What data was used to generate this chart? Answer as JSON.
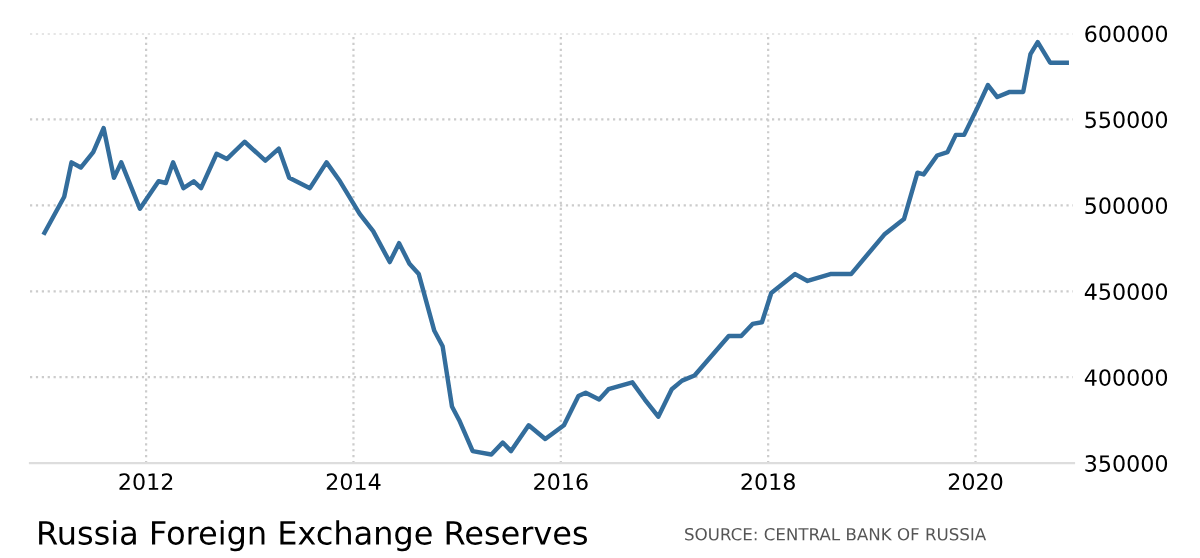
{
  "chart_data": {
    "type": "line",
    "title": "Russia Foreign Exchange Reserves",
    "annotations": [
      "SOURCE: CENTRAL BANK OF RUSSIA"
    ],
    "xlim": [
      2010.88,
      2020.95
    ],
    "xticks": [
      2012,
      2014,
      2016,
      2018,
      2020
    ],
    "ylim": [
      350000,
      600000
    ],
    "yticks": [
      350000,
      400000,
      450000,
      500000,
      550000,
      600000
    ],
    "grid": true,
    "marker": "none",
    "line_style": "solid",
    "series": [
      {
        "color": "#336d9c",
        "x": [
          2011.02,
          2011.21,
          2011.28,
          2011.37,
          2011.49,
          2011.59,
          2011.69,
          2011.76,
          2011.94,
          2012.12,
          2012.19,
          2012.26,
          2012.36,
          2012.46,
          2012.53,
          2012.68,
          2012.78,
          2012.95,
          2013.15,
          2013.28,
          2013.38,
          2013.58,
          2013.74,
          2013.87,
          2014.06,
          2014.19,
          2014.35,
          2014.44,
          2014.54,
          2014.63,
          2014.78,
          2014.86,
          2014.95,
          2015.02,
          2015.15,
          2015.33,
          2015.44,
          2015.52,
          2015.69,
          2015.85,
          2016.03,
          2016.17,
          2016.24,
          2016.37,
          2016.46,
          2016.69,
          2016.81,
          2016.94,
          2017.07,
          2017.17,
          2017.29,
          2017.62,
          2017.74,
          2017.85,
          2017.94,
          2018.03,
          2018.26,
          2018.38,
          2018.6,
          2018.8,
          2019.12,
          2019.31,
          2019.44,
          2019.5,
          2019.63,
          2019.73,
          2019.81,
          2019.89,
          2020.02,
          2020.12,
          2020.21,
          2020.33,
          2020.46,
          2020.53,
          2020.6,
          2020.72,
          2020.88
        ],
        "values": [
          484000,
          505000,
          525000,
          522000,
          531000,
          545000,
          516000,
          525000,
          498000,
          514000,
          513000,
          525000,
          510000,
          514000,
          510000,
          530000,
          527000,
          537000,
          526000,
          533000,
          516000,
          510000,
          525000,
          514000,
          495000,
          485000,
          467000,
          478000,
          466000,
          460000,
          427000,
          418000,
          383000,
          375000,
          357000,
          355000,
          362000,
          357000,
          372000,
          364000,
          372000,
          389000,
          391000,
          387000,
          393000,
          397000,
          387000,
          377000,
          393000,
          398000,
          401000,
          424000,
          424000,
          431000,
          432000,
          449000,
          460000,
          456000,
          460000,
          460000,
          483000,
          492000,
          519000,
          518000,
          529000,
          531000,
          541000,
          541000,
          557000,
          570000,
          563000,
          566000,
          566000,
          588000,
          595000,
          583000,
          583000
        ]
      }
    ]
  }
}
